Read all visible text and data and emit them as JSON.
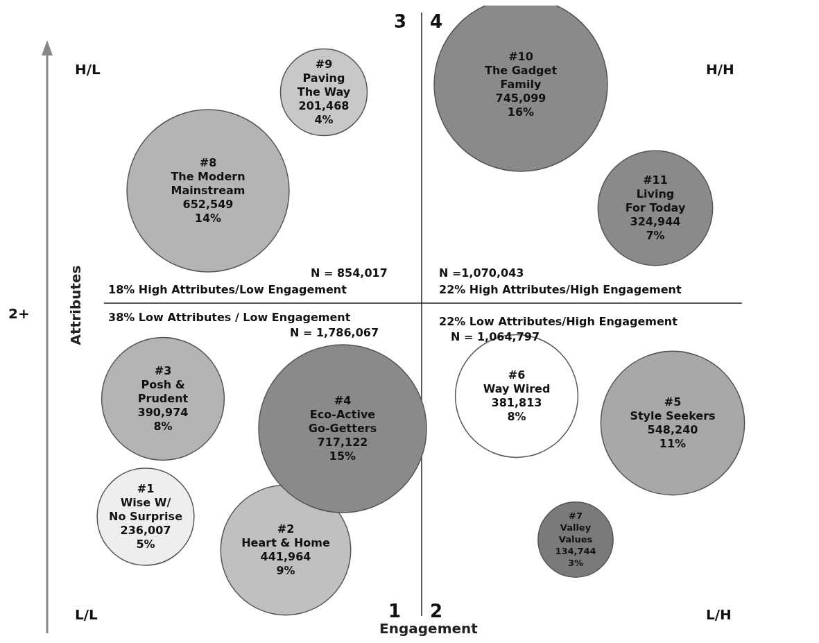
{
  "chart_data": {
    "type": "other",
    "xlabel": "Engagement",
    "ylabel": "Attributes",
    "categories": [
      "#1\nWise W/\nNo Surprise\n236,007",
      "#2\nHeart & Home\n441,964",
      "#3\nPosh &\nPrudent\n390,974",
      "#4\nEco-Active\nGo-Getters\n717,122",
      "#5\nStyle Seekers\n548,240",
      "#6\nWay Wired\n381,813",
      "#7\nValley\nValues\n134,744",
      "#8\nThe Modern\nMainstream\n652,549",
      "#9\nPaving\nThe Way\n201,468",
      "#10\nThe Gadget\nFamily\n745,099",
      "#11\nLiving\nFor Today\n324,944"
    ],
    "values": [
      5,
      9,
      8,
      15,
      11,
      8,
      3,
      14,
      4,
      16,
      7
    ],
    "value_labels": [
      "5%",
      "9%",
      "8%",
      "15%",
      "11%",
      "8%",
      "3%",
      "14%",
      "4%",
      "16%",
      "7%"
    ],
    "colors": [
      "#eeeeee",
      "#c0c0c0",
      "#b4b4b4",
      "#8a8a8a",
      "#a8a8a8",
      "#ffffff",
      "#7a7a7a",
      "#b4b4b4",
      "#c8c8c8",
      "#8a8a8a",
      "#8a8a8a"
    ],
    "annotations": [
      "H/L",
      "H/H",
      "L/L",
      "L/H",
      "3",
      "4",
      "1",
      "2",
      "N = 854,017",
      "18% High Attributes/Low Engagement",
      "N =1,070,043",
      "22% High Attributes/High Engagement",
      "38% Low Attributes / Low Engagement",
      "N = 1,786,067",
      "22% Low Attributes/High Engagement",
      "N = 1,064,797",
      "2+"
    ]
  }
}
